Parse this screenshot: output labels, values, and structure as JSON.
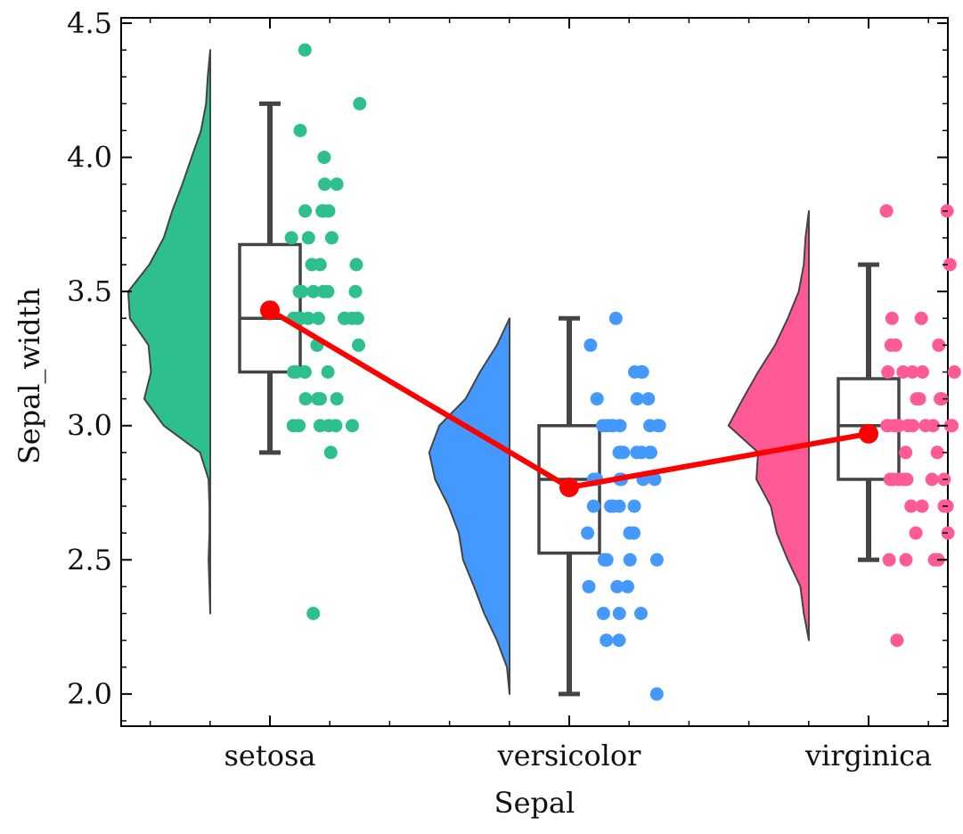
{
  "chart_data": {
    "type": "raincloud",
    "xlabel": "Sepal",
    "ylabel": "Sepal_width",
    "ylim": [
      1.88,
      4.52
    ],
    "yticks": [
      "2.0",
      "2.5",
      "3.0",
      "3.5",
      "4.0",
      "4.5"
    ],
    "ytick_values": [
      2.0,
      2.5,
      3.0,
      3.5,
      4.0,
      4.5
    ],
    "categories": [
      "setosa",
      "versicolor",
      "virginica"
    ],
    "series": [
      {
        "category": "setosa",
        "color": "#2EBF8F",
        "box": {
          "whisker_low": 2.9,
          "q1": 3.2,
          "median": 3.4,
          "q3": 3.675,
          "whisker_high": 4.2
        },
        "mean": 3.43,
        "density_range": [
          2.3,
          4.4
        ],
        "density": [
          [
            2.3,
            0.0
          ],
          [
            2.4,
            0.01
          ],
          [
            2.5,
            0.02
          ],
          [
            2.6,
            0.01
          ],
          [
            2.7,
            0.01
          ],
          [
            2.8,
            0.02
          ],
          [
            2.9,
            0.12
          ],
          [
            3.0,
            0.55
          ],
          [
            3.1,
            0.78
          ],
          [
            3.2,
            0.7
          ],
          [
            3.3,
            0.73
          ],
          [
            3.4,
            0.95
          ],
          [
            3.5,
            0.97
          ],
          [
            3.6,
            0.72
          ],
          [
            3.7,
            0.55
          ],
          [
            3.8,
            0.45
          ],
          [
            3.9,
            0.33
          ],
          [
            4.0,
            0.22
          ],
          [
            4.1,
            0.11
          ],
          [
            4.2,
            0.05
          ],
          [
            4.3,
            0.03
          ],
          [
            4.4,
            0.0
          ]
        ],
        "points": [
          [
            3.5,
            0
          ],
          [
            3.0,
            0
          ],
          [
            3.2,
            0
          ],
          [
            3.1,
            0
          ],
          [
            3.6,
            0
          ],
          [
            3.9,
            0
          ],
          [
            3.4,
            0
          ],
          [
            3.4,
            0
          ],
          [
            2.9,
            0
          ],
          [
            3.1,
            0
          ],
          [
            3.7,
            0
          ],
          [
            3.4,
            0
          ],
          [
            3.0,
            0
          ],
          [
            3.0,
            0
          ],
          [
            4.0,
            0
          ],
          [
            4.4,
            0
          ],
          [
            3.9,
            0
          ],
          [
            3.5,
            0
          ],
          [
            3.8,
            0
          ],
          [
            3.8,
            0
          ],
          [
            3.4,
            0
          ],
          [
            3.7,
            0
          ],
          [
            3.6,
            0
          ],
          [
            3.3,
            0
          ],
          [
            3.4,
            0
          ],
          [
            3.0,
            0
          ],
          [
            3.4,
            0
          ],
          [
            3.5,
            0
          ],
          [
            3.4,
            0
          ],
          [
            3.2,
            0
          ],
          [
            3.1,
            0
          ],
          [
            3.4,
            0
          ],
          [
            4.1,
            0
          ],
          [
            4.2,
            0
          ],
          [
            3.1,
            0
          ],
          [
            3.2,
            0
          ],
          [
            3.5,
            0
          ],
          [
            3.6,
            0
          ],
          [
            3.0,
            0
          ],
          [
            3.4,
            0
          ],
          [
            3.5,
            0
          ],
          [
            2.3,
            0
          ],
          [
            3.2,
            0
          ],
          [
            3.5,
            0
          ],
          [
            3.8,
            0
          ],
          [
            3.0,
            0
          ],
          [
            3.8,
            0
          ],
          [
            3.2,
            0
          ],
          [
            3.7,
            0
          ],
          [
            3.3,
            0
          ]
        ]
      },
      {
        "category": "versicolor",
        "color": "#4499FF",
        "box": {
          "whisker_low": 2.0,
          "q1": 2.525,
          "median": 2.8,
          "q3": 3.0,
          "whisker_high": 3.4
        },
        "mean": 2.77,
        "density_range": [
          2.0,
          3.4
        ],
        "density": [
          [
            2.0,
            0.0
          ],
          [
            2.1,
            0.03
          ],
          [
            2.2,
            0.15
          ],
          [
            2.3,
            0.3
          ],
          [
            2.4,
            0.42
          ],
          [
            2.5,
            0.55
          ],
          [
            2.6,
            0.6
          ],
          [
            2.7,
            0.72
          ],
          [
            2.8,
            0.88
          ],
          [
            2.9,
            0.95
          ],
          [
            3.0,
            0.83
          ],
          [
            3.1,
            0.52
          ],
          [
            3.2,
            0.35
          ],
          [
            3.3,
            0.15
          ],
          [
            3.4,
            0.0
          ]
        ],
        "points": [
          [
            3.2,
            0
          ],
          [
            3.2,
            0
          ],
          [
            3.1,
            0
          ],
          [
            2.3,
            0
          ],
          [
            2.8,
            0
          ],
          [
            2.8,
            0
          ],
          [
            3.3,
            0
          ],
          [
            2.4,
            0
          ],
          [
            2.9,
            0
          ],
          [
            2.7,
            0
          ],
          [
            2.0,
            0
          ],
          [
            3.0,
            0
          ],
          [
            2.2,
            0
          ],
          [
            2.9,
            0
          ],
          [
            2.9,
            0
          ],
          [
            3.1,
            0
          ],
          [
            3.0,
            0
          ],
          [
            2.7,
            0
          ],
          [
            2.2,
            0
          ],
          [
            2.5,
            0
          ],
          [
            3.2,
            0
          ],
          [
            2.8,
            0
          ],
          [
            2.5,
            0
          ],
          [
            2.8,
            0
          ],
          [
            2.9,
            0
          ],
          [
            3.0,
            0
          ],
          [
            2.8,
            0
          ],
          [
            3.0,
            0
          ],
          [
            2.9,
            0
          ],
          [
            2.6,
            0
          ],
          [
            2.4,
            0
          ],
          [
            2.4,
            0
          ],
          [
            2.7,
            0
          ],
          [
            2.7,
            0
          ],
          [
            3.0,
            0
          ],
          [
            3.4,
            0
          ],
          [
            3.1,
            0
          ],
          [
            2.3,
            0
          ],
          [
            3.0,
            0
          ],
          [
            2.5,
            0
          ],
          [
            2.6,
            0
          ],
          [
            3.0,
            0
          ],
          [
            2.6,
            0
          ],
          [
            2.3,
            0
          ],
          [
            2.7,
            0
          ],
          [
            3.0,
            0
          ],
          [
            2.9,
            0
          ],
          [
            2.9,
            0
          ],
          [
            2.5,
            0
          ],
          [
            2.8,
            0
          ]
        ]
      },
      {
        "category": "virginica",
        "color": "#FF5A96",
        "box": {
          "whisker_low": 2.5,
          "q1": 2.8,
          "median": 3.0,
          "q3": 3.175,
          "whisker_high": 3.6
        },
        "mean": 2.97,
        "density_range": [
          2.2,
          3.8
        ],
        "density": [
          [
            2.2,
            0.0
          ],
          [
            2.3,
            0.06
          ],
          [
            2.4,
            0.1
          ],
          [
            2.5,
            0.25
          ],
          [
            2.6,
            0.38
          ],
          [
            2.7,
            0.45
          ],
          [
            2.8,
            0.62
          ],
          [
            2.9,
            0.6
          ],
          [
            3.0,
            0.95
          ],
          [
            3.1,
            0.78
          ],
          [
            3.2,
            0.6
          ],
          [
            3.3,
            0.4
          ],
          [
            3.4,
            0.25
          ],
          [
            3.5,
            0.12
          ],
          [
            3.6,
            0.06
          ],
          [
            3.7,
            0.04
          ],
          [
            3.8,
            0.0
          ]
        ],
        "points": [
          [
            3.3,
            0
          ],
          [
            2.7,
            0
          ],
          [
            3.0,
            0
          ],
          [
            2.9,
            0
          ],
          [
            3.0,
            0
          ],
          [
            3.0,
            0
          ],
          [
            2.5,
            0
          ],
          [
            2.9,
            0
          ],
          [
            2.5,
            0
          ],
          [
            3.6,
            0
          ],
          [
            3.2,
            0
          ],
          [
            2.7,
            0
          ],
          [
            3.0,
            0
          ],
          [
            2.5,
            0
          ],
          [
            2.8,
            0
          ],
          [
            3.2,
            0
          ],
          [
            3.0,
            0
          ],
          [
            3.8,
            0
          ],
          [
            2.6,
            0
          ],
          [
            2.2,
            0
          ],
          [
            3.2,
            0
          ],
          [
            2.8,
            0
          ],
          [
            2.8,
            0
          ],
          [
            2.7,
            0
          ],
          [
            3.3,
            0
          ],
          [
            3.2,
            0
          ],
          [
            2.8,
            0
          ],
          [
            3.0,
            0
          ],
          [
            2.8,
            0
          ],
          [
            3.0,
            0
          ],
          [
            2.8,
            0
          ],
          [
            3.8,
            0
          ],
          [
            2.8,
            0
          ],
          [
            2.8,
            0
          ],
          [
            2.6,
            0
          ],
          [
            3.0,
            0
          ],
          [
            3.4,
            0
          ],
          [
            3.1,
            0
          ],
          [
            3.0,
            0
          ],
          [
            3.1,
            0
          ],
          [
            3.1,
            0
          ],
          [
            3.1,
            0
          ],
          [
            2.7,
            0
          ],
          [
            3.2,
            0
          ],
          [
            3.3,
            0
          ],
          [
            3.0,
            0
          ],
          [
            2.5,
            0
          ],
          [
            3.0,
            0
          ],
          [
            3.4,
            0
          ],
          [
            3.0,
            0
          ]
        ]
      }
    ],
    "mean_line_color": "#FF0000",
    "grid": false
  }
}
